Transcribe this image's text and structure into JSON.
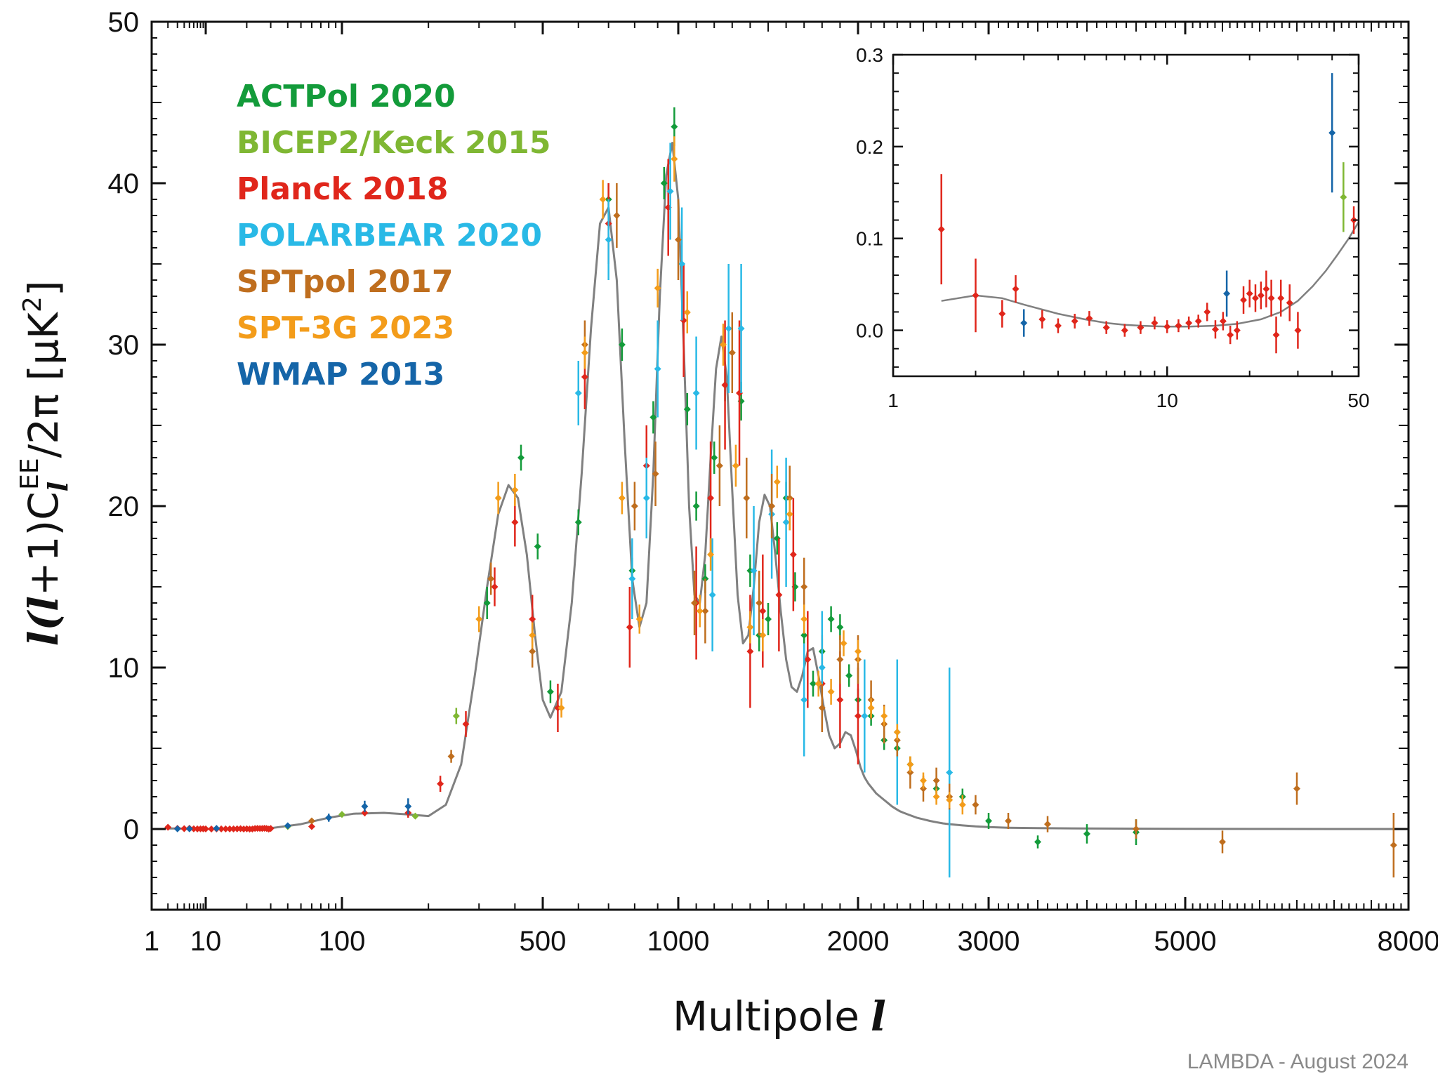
{
  "chart_data": {
    "type": "scatter",
    "title": "",
    "xlabel": "Multipole",
    "xlabel_symbol": "l",
    "ylabel": "l(l+1)C_l^EE/2π [μK²]",
    "ylabel_parts": {
      "prefix": "l(",
      "ell": "l",
      "mid": "+1)C",
      "sub": "l",
      "sup": "EE",
      "suffix": "/2π [μK",
      "exp": "2",
      "close": "]"
    },
    "x_scale": "piecewise (log at low l, linear at high l)",
    "x_ticks": [
      1,
      10,
      100,
      500,
      1000,
      2000,
      3000,
      5000,
      8000
    ],
    "y_ticks": [
      0,
      10,
      20,
      30,
      40,
      50
    ],
    "ylim": [
      -5,
      50
    ],
    "xlim": [
      1,
      8000
    ],
    "legend_position": "top-left",
    "credit": "LAMBDA - August 2024",
    "colors": {
      "ACTPol 2020": "#139b3a",
      "BICEP2/Keck 2015": "#7fb733",
      "Planck 2018": "#e0261b",
      "POLARBEAR 2020": "#29b9e6",
      "SPTpol 2017": "#bf6e1e",
      "SPT-3G 2023": "#f39c1a",
      "WMAP 2013": "#1565a8",
      "model": "#808080"
    },
    "model_curve": {
      "name": "",
      "x": [
        2,
        3,
        5,
        7,
        10,
        15,
        20,
        30,
        50,
        80,
        110,
        140,
        170,
        200,
        230,
        260,
        290,
        320,
        350,
        380,
        410,
        440,
        470,
        500,
        520,
        550,
        580,
        610,
        640,
        670,
        700,
        730,
        760,
        790,
        820,
        850,
        880,
        910,
        940,
        970,
        1000,
        1030,
        1060,
        1090,
        1120,
        1150,
        1180,
        1210,
        1240,
        1270,
        1300,
        1330,
        1360,
        1390,
        1420,
        1450,
        1480,
        1510,
        1540,
        1570,
        1600,
        1630,
        1660,
        1690,
        1720,
        1750,
        1780,
        1810,
        1840,
        1870,
        1900,
        1930,
        1960,
        1990,
        2020,
        2050,
        2080,
        2110,
        2140,
        2170,
        2200,
        2230,
        2260,
        2290,
        2320,
        2350,
        2400,
        2450,
        2500,
        2550,
        2600,
        2650,
        2700,
        2800,
        2900,
        3000,
        3200,
        3500,
        4000,
        5000,
        6000,
        7000,
        8000
      ],
      "y": [
        0.03,
        0.035,
        0.02,
        0.01,
        0.005,
        0.01,
        0.02,
        0.05,
        0.3,
        0.7,
        0.95,
        1.0,
        0.9,
        0.8,
        1.5,
        4.0,
        9.5,
        15.0,
        19.5,
        21.3,
        20.5,
        17.0,
        12.0,
        8.0,
        6.9,
        8.5,
        14.0,
        22.0,
        31.0,
        37.5,
        38.5,
        34.0,
        24.0,
        15.5,
        12.5,
        14.0,
        22.0,
        33.0,
        40.5,
        42.5,
        39.0,
        30.0,
        20.0,
        14.5,
        14.0,
        17.0,
        23.0,
        28.5,
        30.5,
        28.0,
        21.0,
        14.5,
        11.5,
        12.0,
        15.0,
        19.0,
        20.7,
        20.0,
        17.0,
        13.5,
        10.5,
        8.8,
        8.5,
        9.5,
        11.0,
        11.2,
        9.5,
        7.5,
        5.8,
        5.0,
        5.3,
        6.0,
        5.8,
        4.8,
        3.8,
        3.2,
        2.8,
        2.5,
        2.2,
        2.0,
        1.8,
        1.6,
        1.4,
        1.25,
        1.1,
        1.0,
        0.85,
        0.7,
        0.6,
        0.5,
        0.42,
        0.35,
        0.3,
        0.22,
        0.16,
        0.12,
        0.08,
        0.05,
        0.03,
        0.01,
        0.005,
        0.002,
        0.0
      ]
    },
    "series": [
      {
        "name": "ACTPol 2020",
        "x": [
          320,
          420,
          480,
          520,
          600,
          700,
          750,
          790,
          880,
          930,
          980,
          1050,
          1100,
          1150,
          1200,
          1260,
          1350,
          1400,
          1450,
          1500,
          1550,
          1600,
          1650,
          1700,
          1750,
          1800,
          1850,
          1900,
          1950,
          2000,
          2100,
          2200,
          2300,
          2400,
          2600,
          2800,
          3000,
          3500,
          4000,
          4500
        ],
        "y": [
          14.0,
          23.0,
          17.5,
          8.5,
          19.0,
          39.0,
          30.0,
          16.0,
          25.5,
          40.0,
          43.5,
          26.0,
          20.0,
          15.5,
          23.0,
          27.5,
          26.5,
          16.0,
          12.0,
          13.0,
          18.0,
          20.5,
          15.0,
          12.0,
          9.0,
          11.0,
          13.0,
          12.5,
          9.5,
          8.0,
          7.0,
          5.5,
          5.0,
          4.0,
          2.5,
          2.0,
          0.5,
          -0.8,
          -0.3,
          -0.2
        ],
        "err": [
          1.0,
          0.8,
          0.8,
          0.7,
          0.8,
          1.0,
          1.0,
          0.8,
          1.0,
          1.0,
          1.2,
          1.0,
          0.9,
          0.9,
          1.0,
          1.0,
          1.2,
          1.0,
          1.0,
          1.0,
          1.0,
          1.0,
          0.9,
          0.9,
          0.8,
          0.8,
          0.8,
          0.8,
          0.7,
          0.7,
          0.6,
          0.6,
          0.6,
          0.5,
          0.5,
          0.5,
          0.5,
          0.4,
          0.6,
          0.8
        ]
      },
      {
        "name": "BICEP2/Keck 2015",
        "x": [
          40,
          100,
          180,
          250
        ],
        "y": [
          0.15,
          0.9,
          0.8,
          7.0
        ],
        "err": [
          0.04,
          0.1,
          0.15,
          0.5
        ]
      },
      {
        "name": "Planck 2018",
        "x": [
          2,
          3,
          4,
          5,
          6,
          7,
          8,
          9,
          10,
          11,
          12,
          13,
          14,
          15,
          16,
          17,
          18,
          19,
          20,
          21,
          22,
          23,
          24,
          25,
          26,
          27,
          28,
          29,
          30,
          60,
          120,
          170,
          220,
          270,
          340,
          400,
          460,
          540,
          620,
          700,
          780,
          850,
          950,
          1030,
          1100,
          1180,
          1260,
          1340,
          1400,
          1470,
          1560,
          1640,
          1720,
          1800,
          1900,
          2000
        ],
        "y": [
          0.11,
          0.04,
          0.02,
          0.045,
          0.012,
          0.005,
          0.01,
          0.013,
          0.003,
          0.0,
          0.003,
          0.008,
          0.004,
          0.005,
          0.008,
          0.01,
          0.02,
          0.001,
          0.01,
          -0.005,
          0.0,
          0.033,
          0.04,
          0.035,
          0.03,
          0.045,
          0.035,
          -0.005,
          0.035,
          0.15,
          1.0,
          1.0,
          2.8,
          6.5,
          15.0,
          19.0,
          13.0,
          7.5,
          28.0,
          37.5,
          12.5,
          22.5,
          38.5,
          31.5,
          14.0,
          20.5,
          27.5,
          27.0,
          11.0,
          13.5,
          14.5,
          17.0,
          10.5,
          9.0,
          8.0,
          7.0
        ],
        "err": [
          0.06,
          0.04,
          0.015,
          0.015,
          0.01,
          0.008,
          0.008,
          0.008,
          0.007,
          0.007,
          0.007,
          0.007,
          0.007,
          0.007,
          0.007,
          0.007,
          0.01,
          0.01,
          0.01,
          0.01,
          0.01,
          0.015,
          0.015,
          0.015,
          0.015,
          0.02,
          0.02,
          0.02,
          0.02,
          0.05,
          0.2,
          0.3,
          0.5,
          0.8,
          1.2,
          1.5,
          1.5,
          1.5,
          2.0,
          2.5,
          2.5,
          2.5,
          3.0,
          3.5,
          3.5,
          3.5,
          4.0,
          4.5,
          3.5,
          3.5,
          3.5,
          3.5,
          3.0,
          3.0,
          3.0,
          3.0
        ]
      },
      {
        "name": "POLARBEAR 2020",
        "x": [
          600,
          700,
          790,
          850,
          900,
          960,
          1020,
          1100,
          1190,
          1280,
          1350,
          1420,
          1520,
          1600,
          1700,
          1800,
          2050,
          2300,
          2700
        ],
        "y": [
          27.0,
          36.5,
          15.5,
          20.5,
          28.5,
          39.5,
          35.0,
          27.0,
          14.5,
          31.0,
          31.0,
          16.0,
          19.5,
          19.0,
          8.0,
          10.0,
          7.0,
          6.0,
          3.5
        ],
        "err": [
          2.0,
          2.5,
          2.5,
          2.5,
          3.0,
          3.0,
          3.5,
          3.5,
          3.5,
          4.0,
          4.0,
          4.0,
          4.0,
          4.0,
          3.5,
          3.5,
          3.5,
          4.5,
          6.5
        ]
      },
      {
        "name": "SPTpol 2017",
        "x": [
          60,
          240,
          330,
          460,
          620,
          730,
          800,
          890,
          1000,
          1090,
          1150,
          1230,
          1300,
          1380,
          1450,
          1520,
          1620,
          1700,
          1800,
          1900,
          2000,
          2100,
          2200,
          2300,
          2400,
          2500,
          2600,
          2700,
          2900,
          3200,
          3600,
          4500,
          5500,
          6500,
          7800
        ],
        "y": [
          0.5,
          4.5,
          15.5,
          11.0,
          30.0,
          38.0,
          20.0,
          22.0,
          36.5,
          14.0,
          13.5,
          22.5,
          29.5,
          20.5,
          14.0,
          20.0,
          20.5,
          15.0,
          7.5,
          10.5,
          10.5,
          8.0,
          6.5,
          5.5,
          3.5,
          2.5,
          3.0,
          2.0,
          1.5,
          0.5,
          0.3,
          0.0,
          -0.8,
          2.5,
          -1.0
        ],
        "err": [
          0.1,
          0.4,
          1.0,
          1.0,
          1.5,
          2.0,
          1.5,
          2.0,
          2.5,
          2.0,
          2.0,
          2.5,
          2.5,
          2.5,
          2.0,
          2.0,
          2.0,
          1.8,
          1.5,
          1.5,
          1.5,
          1.2,
          1.2,
          1.0,
          1.0,
          0.8,
          0.8,
          0.8,
          0.6,
          0.5,
          0.5,
          0.6,
          0.7,
          1.0,
          2.0
        ]
      },
      {
        "name": "SPT-3G 2023",
        "x": [
          300,
          350,
          400,
          460,
          550,
          620,
          680,
          750,
          820,
          900,
          980,
          1050,
          1120,
          1180,
          1250,
          1320,
          1400,
          1470,
          1550,
          1620,
          1700,
          1780,
          1850,
          1920,
          2000,
          2100,
          2200,
          2300,
          2400,
          2500,
          2600,
          2700,
          2800
        ],
        "y": [
          13.0,
          20.5,
          21.0,
          12.0,
          7.5,
          29.5,
          39.0,
          20.5,
          13.0,
          33.5,
          41.5,
          32.0,
          13.5,
          17.0,
          30.0,
          22.5,
          12.5,
          12.0,
          21.5,
          19.5,
          13.0,
          9.0,
          8.5,
          11.5,
          11.0,
          7.5,
          7.0,
          6.0,
          4.0,
          3.0,
          2.0,
          1.8,
          1.5
        ],
        "err": [
          0.8,
          1.0,
          1.0,
          0.8,
          0.6,
          1.0,
          1.2,
          1.0,
          0.9,
          1.2,
          1.4,
          1.3,
          1.0,
          1.0,
          1.3,
          1.3,
          1.0,
          1.0,
          1.0,
          1.0,
          0.9,
          0.8,
          0.8,
          0.8,
          0.7,
          0.6,
          0.6,
          0.5,
          0.5,
          0.5,
          0.5,
          0.5,
          0.6
        ]
      },
      {
        "name": "WMAP 2013",
        "x": [
          3,
          5,
          12,
          40,
          80,
          120,
          170
        ],
        "y": [
          0.01,
          0.01,
          0.04,
          0.2,
          0.7,
          1.4,
          1.4
        ],
        "err": [
          0.015,
          0.015,
          0.025,
          0.08,
          0.25,
          0.35,
          0.5
        ]
      }
    ],
    "inset": {
      "type": "scatter",
      "x_scale": "log",
      "xlim": [
        1,
        50
      ],
      "ylim": [
        -0.05,
        0.3
      ],
      "x_ticks": [
        1,
        10,
        50
      ],
      "y_ticks": [
        0.0,
        0.1,
        0.2,
        0.3
      ],
      "y_tick_labels": [
        "0.0",
        "0.1",
        "0.2",
        "0.3"
      ],
      "model_curve": {
        "x": [
          1.5,
          2,
          2.5,
          3,
          4,
          5,
          6,
          7,
          8,
          10,
          12,
          15,
          18,
          22,
          26,
          30,
          34,
          38,
          42,
          46,
          50
        ],
        "y": [
          0.032,
          0.038,
          0.035,
          0.028,
          0.018,
          0.012,
          0.008,
          0.006,
          0.005,
          0.004,
          0.004,
          0.005,
          0.007,
          0.012,
          0.02,
          0.032,
          0.048,
          0.065,
          0.083,
          0.1,
          0.118
        ]
      },
      "series": [
        {
          "name": "Planck 2018",
          "x": [
            1.5,
            2.0,
            2.5,
            2.8,
            3.5,
            4.0,
            4.6,
            5.2,
            6.0,
            7.0,
            8.0,
            9.0,
            10.0,
            11.0,
            12.0,
            13.0,
            14.0,
            15.0,
            16.0,
            17.0,
            18.0,
            19.0,
            20.0,
            21.0,
            22.0,
            23.0,
            24.0,
            25.0,
            26.0,
            28.0,
            30.0,
            48.0
          ],
          "y": [
            0.11,
            0.038,
            0.018,
            0.045,
            0.012,
            0.005,
            0.01,
            0.013,
            0.003,
            0.0,
            0.003,
            0.008,
            0.004,
            0.005,
            0.008,
            0.01,
            0.02,
            0.001,
            0.01,
            -0.005,
            0.0,
            0.033,
            0.04,
            0.035,
            0.038,
            0.045,
            0.035,
            -0.005,
            0.035,
            0.03,
            0.0,
            0.12
          ],
          "err": [
            0.06,
            0.04,
            0.015,
            0.015,
            0.01,
            0.008,
            0.008,
            0.008,
            0.007,
            0.007,
            0.007,
            0.007,
            0.007,
            0.007,
            0.007,
            0.007,
            0.01,
            0.01,
            0.01,
            0.01,
            0.01,
            0.015,
            0.015,
            0.015,
            0.015,
            0.02,
            0.02,
            0.02,
            0.02,
            0.02,
            0.02,
            0.015
          ]
        },
        {
          "name": "WMAP 2013",
          "x": [
            3.0,
            16.5,
            40.0
          ],
          "y": [
            0.008,
            0.04,
            0.215
          ],
          "err": [
            0.015,
            0.025,
            0.065
          ]
        },
        {
          "name": "BICEP2/Keck 2015",
          "x": [
            44.0
          ],
          "y": [
            0.145
          ],
          "err": [
            0.038
          ]
        }
      ]
    }
  }
}
